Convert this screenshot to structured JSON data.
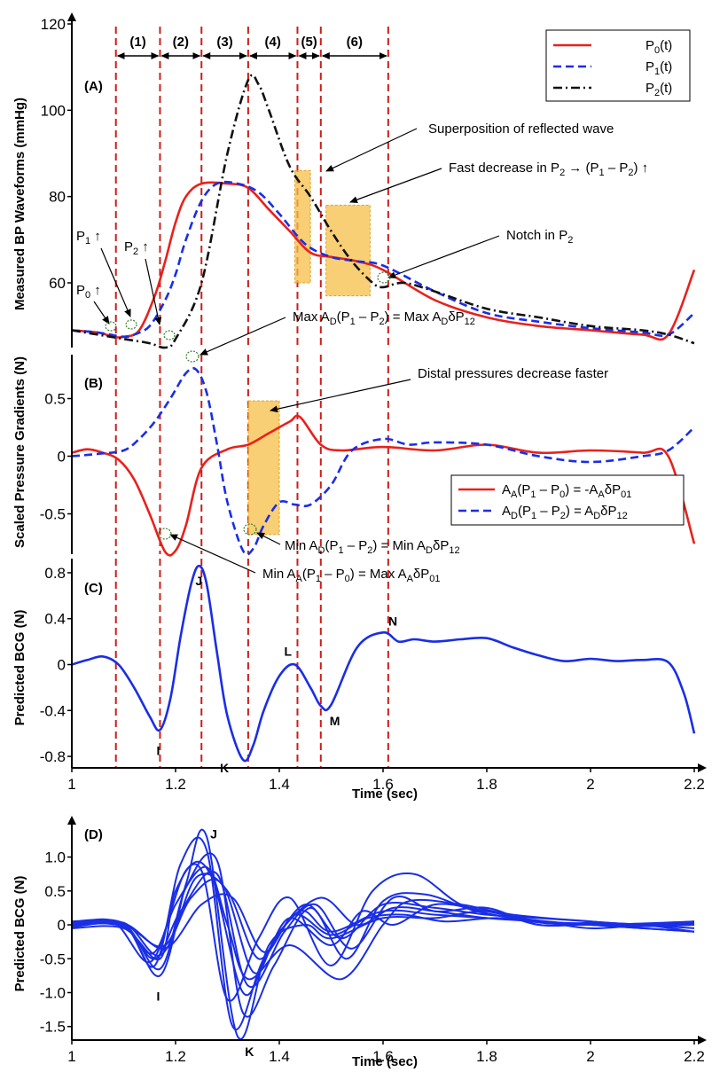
{
  "chart_data": [
    {
      "panel": "(A)",
      "type": "line",
      "ylabel": "Measured BP Waveforms (mmHg)",
      "xlim": [
        1,
        2.2
      ],
      "ylim": [
        45,
        120
      ],
      "yticks": [
        "60",
        "80",
        "100",
        "120"
      ],
      "legend_position": "top-right",
      "series": [
        {
          "name": "P0(t)",
          "style": "solid",
          "color": "#e8211c",
          "x": [
            1.0,
            1.05,
            1.08,
            1.1,
            1.13,
            1.16,
            1.18,
            1.2,
            1.22,
            1.25,
            1.3,
            1.34,
            1.38,
            1.42,
            1.46,
            1.5,
            1.55,
            1.6,
            1.7,
            1.8,
            1.9,
            2.0,
            2.1,
            2.15,
            2.2
          ],
          "y": [
            49,
            48.5,
            47.5,
            47.5,
            49,
            57,
            65,
            74,
            80,
            83,
            83,
            82,
            77,
            72,
            67,
            66,
            65,
            63,
            56,
            52,
            50,
            49,
            48,
            48,
            63
          ]
        },
        {
          "name": "P1(t)",
          "style": "dashed",
          "color": "#1a2ee6",
          "x": [
            1.0,
            1.05,
            1.1,
            1.12,
            1.15,
            1.18,
            1.2,
            1.22,
            1.25,
            1.28,
            1.32,
            1.36,
            1.4,
            1.45,
            1.5,
            1.55,
            1.6,
            1.7,
            1.8,
            1.9,
            2.0,
            2.1,
            2.15,
            2.2
          ],
          "y": [
            49,
            48.5,
            47.5,
            48,
            50,
            56,
            62,
            70,
            79,
            83,
            83,
            81,
            76,
            69,
            66,
            65,
            64,
            58,
            53,
            51,
            49.5,
            48.5,
            48,
            53
          ]
        },
        {
          "name": "P2(t)",
          "style": "dashdot",
          "color": "#111111",
          "x": [
            1.0,
            1.05,
            1.1,
            1.15,
            1.18,
            1.2,
            1.25,
            1.3,
            1.34,
            1.36,
            1.38,
            1.42,
            1.46,
            1.5,
            1.54,
            1.58,
            1.6,
            1.64,
            1.7,
            1.8,
            1.9,
            2.0,
            2.1,
            2.15,
            2.2
          ],
          "y": [
            49,
            48,
            47,
            46,
            45,
            47,
            60,
            90,
            107,
            106,
            100,
            87,
            80,
            72,
            65,
            60,
            59,
            60,
            58,
            54,
            52,
            50,
            49,
            48,
            46
          ]
        }
      ]
    },
    {
      "panel": "(B)",
      "type": "line",
      "ylabel": "Scaled Pressure Gradients (N)",
      "xlim": [
        1,
        2.2
      ],
      "ylim": [
        -0.85,
        0.85
      ],
      "yticks": [
        "-0.5",
        "0",
        "0.5"
      ],
      "legend_position": "bottom-right",
      "series": [
        {
          "name": "AA(P1 – P0) = -AAδP01",
          "style": "solid",
          "color": "#e8211c",
          "x": [
            1.0,
            1.03,
            1.06,
            1.09,
            1.12,
            1.15,
            1.18,
            1.2,
            1.22,
            1.25,
            1.3,
            1.34,
            1.38,
            1.42,
            1.44,
            1.48,
            1.52,
            1.6,
            1.7,
            1.8,
            1.9,
            2.0,
            2.1,
            2.15,
            2.2
          ],
          "y": [
            0.03,
            0.06,
            0.03,
            -0.03,
            -0.2,
            -0.5,
            -0.83,
            -0.82,
            -0.6,
            -0.1,
            0.06,
            0.1,
            0.2,
            0.3,
            0.34,
            0.1,
            0.05,
            0.08,
            0.05,
            0.1,
            0.03,
            0.05,
            0.03,
            0,
            -0.76
          ]
        },
        {
          "name": "AD(P1 – P2) = ADδP12",
          "style": "dashed",
          "color": "#1a2ee6",
          "x": [
            1.0,
            1.05,
            1.1,
            1.13,
            1.16,
            1.19,
            1.22,
            1.24,
            1.26,
            1.28,
            1.3,
            1.33,
            1.35,
            1.37,
            1.4,
            1.43,
            1.46,
            1.5,
            1.54,
            1.6,
            1.65,
            1.7,
            1.8,
            1.9,
            2.0,
            2.1,
            2.15,
            2.2
          ],
          "y": [
            0,
            0.02,
            0.05,
            0.15,
            0.3,
            0.5,
            0.72,
            0.75,
            0.55,
            0.1,
            -0.4,
            -0.82,
            -0.8,
            -0.6,
            -0.4,
            -0.42,
            -0.42,
            -0.25,
            0.05,
            0.15,
            0.1,
            0.12,
            0.1,
            0,
            -0.05,
            0,
            0.05,
            0.25
          ]
        }
      ]
    },
    {
      "panel": "(C)",
      "type": "line",
      "ylabel": "Predicted BCG (N)",
      "xlabel": "Time (sec)",
      "xlim": [
        1,
        2.2
      ],
      "ylim": [
        -0.9,
        0.9
      ],
      "xticks": [
        "1",
        "1.2",
        "1.4",
        "1.6",
        "1.8",
        "2",
        "2.2"
      ],
      "yticks": [
        "-0.8",
        "-0.4",
        "0",
        "0.4",
        "0.8"
      ],
      "points": [
        {
          "label": "I",
          "x": 1.17,
          "y": -0.57
        },
        {
          "label": "J",
          "x": 1.245,
          "y": 0.86
        },
        {
          "label": "K",
          "x": 1.33,
          "y": -0.83
        },
        {
          "label": "L",
          "x": 1.43,
          "y": 0.0
        },
        {
          "label": "M",
          "x": 1.48,
          "y": -0.36
        },
        {
          "label": "N",
          "x": 1.6,
          "y": 0.28
        }
      ],
      "series": [
        {
          "name": "",
          "color": "#1a2ee6",
          "x": [
            1.0,
            1.03,
            1.06,
            1.09,
            1.12,
            1.15,
            1.17,
            1.19,
            1.21,
            1.23,
            1.245,
            1.26,
            1.28,
            1.3,
            1.33,
            1.35,
            1.37,
            1.4,
            1.43,
            1.46,
            1.48,
            1.5,
            1.55,
            1.6,
            1.63,
            1.66,
            1.7,
            1.75,
            1.8,
            1.85,
            1.9,
            1.95,
            2.0,
            2.05,
            2.1,
            2.15,
            2.18,
            2.2
          ],
          "y": [
            0,
            0.04,
            0.07,
            0.0,
            -0.2,
            -0.45,
            -0.57,
            -0.3,
            0.25,
            0.7,
            0.86,
            0.7,
            0.1,
            -0.45,
            -0.83,
            -0.7,
            -0.4,
            -0.1,
            0.0,
            -0.2,
            -0.36,
            -0.35,
            0.15,
            0.28,
            0.2,
            0.22,
            0.2,
            0.22,
            0.23,
            0.15,
            0.08,
            0.03,
            0.05,
            0.03,
            0.04,
            0.02,
            -0.25,
            -0.6
          ]
        }
      ]
    },
    {
      "panel": "(D)",
      "type": "line",
      "ylabel": "Predicted BCG (N)",
      "xlabel": "Time (sec)",
      "xlim": [
        1,
        2.2
      ],
      "ylim": [
        -1.7,
        1.4
      ],
      "xticks": [
        "1",
        "1.2",
        "1.4",
        "1.6",
        "1.8",
        "2",
        "2.2"
      ],
      "yticks": [
        "-1.5",
        "-1.0",
        "-0.5",
        "0",
        "0.5",
        "1.0"
      ],
      "points": [
        {
          "label": "I",
          "x": 1.17,
          "y": -0.75
        },
        {
          "label": "J",
          "x": 1.26,
          "y": 1.3
        },
        {
          "label": "K",
          "x": 1.32,
          "y": -1.65
        }
      ],
      "series": [
        {
          "name": "",
          "color": "#1a2ee6",
          "x": [
            1.0,
            1.1,
            1.17,
            1.22,
            1.26,
            1.32,
            1.38,
            1.45,
            1.5,
            1.6,
            1.7,
            1.8,
            1.9,
            2.0,
            2.1,
            2.2
          ],
          "y": [
            0,
            0,
            -0.75,
            0.6,
            1.3,
            -1.65,
            -0.3,
            0.0,
            -0.2,
            0.1,
            0.1,
            0.2,
            0.0,
            0.0,
            -0.05,
            -0.1
          ]
        },
        {
          "name": "",
          "color": "#1a2ee6",
          "x": [
            1.0,
            1.1,
            1.16,
            1.21,
            1.26,
            1.31,
            1.37,
            1.44,
            1.5,
            1.6,
            1.7,
            1.8,
            1.9,
            2.0,
            2.1,
            2.2
          ],
          "y": [
            0.05,
            0.0,
            -0.6,
            0.9,
            1.1,
            -1.5,
            -0.5,
            0.2,
            -0.1,
            0.2,
            0.15,
            0.1,
            0.05,
            -0.05,
            0.0,
            0.05
          ]
        },
        {
          "name": "",
          "color": "#1a2ee6",
          "x": [
            1.0,
            1.1,
            1.17,
            1.2,
            1.25,
            1.3,
            1.36,
            1.42,
            1.5,
            1.58,
            1.66,
            1.75,
            1.85,
            2.0,
            2.1,
            2.2
          ],
          "y": [
            -0.05,
            -0.05,
            -0.5,
            0.5,
            0.8,
            -1.1,
            -0.2,
            0.4,
            -0.6,
            0.5,
            0.75,
            0.3,
            0.1,
            0.0,
            0.0,
            0.0
          ]
        },
        {
          "name": "",
          "color": "#1a2ee6",
          "x": [
            1.0,
            1.08,
            1.15,
            1.2,
            1.26,
            1.3,
            1.34,
            1.42,
            1.52,
            1.6,
            1.65,
            1.75,
            1.85,
            2.0,
            2.1,
            2.2
          ],
          "y": [
            0.0,
            0.05,
            -0.55,
            0.3,
            0.85,
            0.0,
            -0.8,
            -0.3,
            -0.8,
            0.0,
            0.35,
            0.3,
            0.15,
            0.05,
            0.0,
            -0.05
          ]
        },
        {
          "name": "",
          "color": "#1a2ee6",
          "x": [
            1.0,
            1.1,
            1.16,
            1.22,
            1.27,
            1.33,
            1.38,
            1.45,
            1.52,
            1.6,
            1.7,
            1.8,
            1.9,
            2.0,
            2.1,
            2.2
          ],
          "y": [
            0.02,
            -0.02,
            -0.4,
            0.8,
            0.7,
            -1.0,
            -0.4,
            0.3,
            -0.2,
            0.3,
            0.25,
            0.15,
            0.1,
            0.05,
            0.0,
            0.02
          ]
        },
        {
          "name": "",
          "color": "#1a2ee6",
          "x": [
            1.0,
            1.1,
            1.17,
            1.23,
            1.29,
            1.35,
            1.4,
            1.48,
            1.55,
            1.62,
            1.7,
            1.8,
            1.9,
            2.0,
            2.1,
            2.2
          ],
          "y": [
            -0.02,
            0.03,
            -0.45,
            0.4,
            0.6,
            -0.7,
            -0.1,
            0.4,
            0.0,
            0.25,
            0.2,
            0.1,
            0.05,
            0.0,
            -0.05,
            -0.1
          ]
        },
        {
          "name": "",
          "color": "#1a2ee6",
          "x": [
            1.0,
            1.1,
            1.18,
            1.24,
            1.3,
            1.36,
            1.42,
            1.5,
            1.56,
            1.62,
            1.7,
            1.8,
            1.9,
            2.0,
            2.1,
            2.2
          ],
          "y": [
            0.0,
            0.0,
            -0.3,
            0.7,
            0.5,
            -0.5,
            0.1,
            -0.3,
            0.2,
            0.0,
            0.3,
            0.2,
            0.05,
            0.02,
            0.0,
            0.03
          ]
        },
        {
          "name": "",
          "color": "#1a2ee6",
          "x": [
            1.0,
            1.1,
            1.16,
            1.21,
            1.28,
            1.34,
            1.41,
            1.47,
            1.54,
            1.62,
            1.7,
            1.8,
            1.9,
            2.0,
            2.1,
            2.2
          ],
          "y": [
            0.03,
            -0.03,
            -0.5,
            0.2,
            0.75,
            -0.9,
            -0.1,
            0.3,
            -0.35,
            0.4,
            0.2,
            0.25,
            0.0,
            0.03,
            0.0,
            -0.1
          ]
        },
        {
          "name": "",
          "color": "#1a2ee6",
          "x": [
            1.0,
            1.1,
            1.17,
            1.22,
            1.28,
            1.33,
            1.39,
            1.46,
            1.53,
            1.6,
            1.68,
            1.78,
            1.88,
            2.0,
            2.1,
            2.2
          ],
          "y": [
            0.05,
            0.02,
            -0.65,
            0.55,
            0.95,
            -1.3,
            -0.6,
            0.25,
            -0.5,
            0.35,
            0.45,
            0.2,
            0.08,
            0.0,
            -0.02,
            0.0
          ]
        },
        {
          "name": "",
          "color": "#1a2ee6",
          "x": [
            1.0,
            1.1,
            1.18,
            1.25,
            1.31,
            1.37,
            1.43,
            1.5,
            1.57,
            1.64,
            1.72,
            1.82,
            1.92,
            2.0,
            2.1,
            2.2
          ],
          "y": [
            -0.03,
            0.02,
            -0.35,
            0.3,
            0.4,
            -0.4,
            0.15,
            -0.15,
            0.1,
            0.15,
            0.05,
            0.1,
            0.02,
            0.0,
            0.02,
            0.05
          ]
        }
      ]
    }
  ],
  "intervals": [
    "(1)",
    "(2)",
    "(3)",
    "(4)",
    "(5)",
    "(6)"
  ],
  "intervals_x": [
    1.085,
    1.17,
    1.25,
    1.34,
    1.435,
    1.48,
    1.61
  ],
  "highlight_regions": [
    {
      "panel": "(A)",
      "x": [
        1.43,
        1.46
      ],
      "y": [
        60,
        86
      ]
    },
    {
      "panel": "(A)",
      "x": [
        1.49,
        1.575
      ],
      "y": [
        57,
        78
      ]
    },
    {
      "panel": "(B)",
      "x": [
        1.34,
        1.4
      ],
      "y": [
        -0.68,
        0.48
      ]
    }
  ],
  "annotations_A": {
    "superposition": "Superposition of reflected wave",
    "fast_decrease": "Fast decrease in P₂ → (P₁ – P₂) ↑",
    "notch": "Notch in P₂",
    "p1_up": "P₁ ↑",
    "p2_up": "P₂ ↑",
    "p0_up": "P₀ ↑",
    "max_ad": "Max A_D(P₁ – P₂) = Max A_DδP₁₂"
  },
  "annotations_B": {
    "distal": "Distal pressures decrease faster",
    "min_ad": "Min A_D(P₁ – P₂) = Min A_DδP₁₂",
    "min_aa": "Min A_A(P₁ – P₀) = Max A_AδP₀₁"
  },
  "colors": {
    "red": "#e8211c",
    "blue": "#1a2ee6",
    "black": "#111111",
    "highlight": "#f6bf45"
  }
}
